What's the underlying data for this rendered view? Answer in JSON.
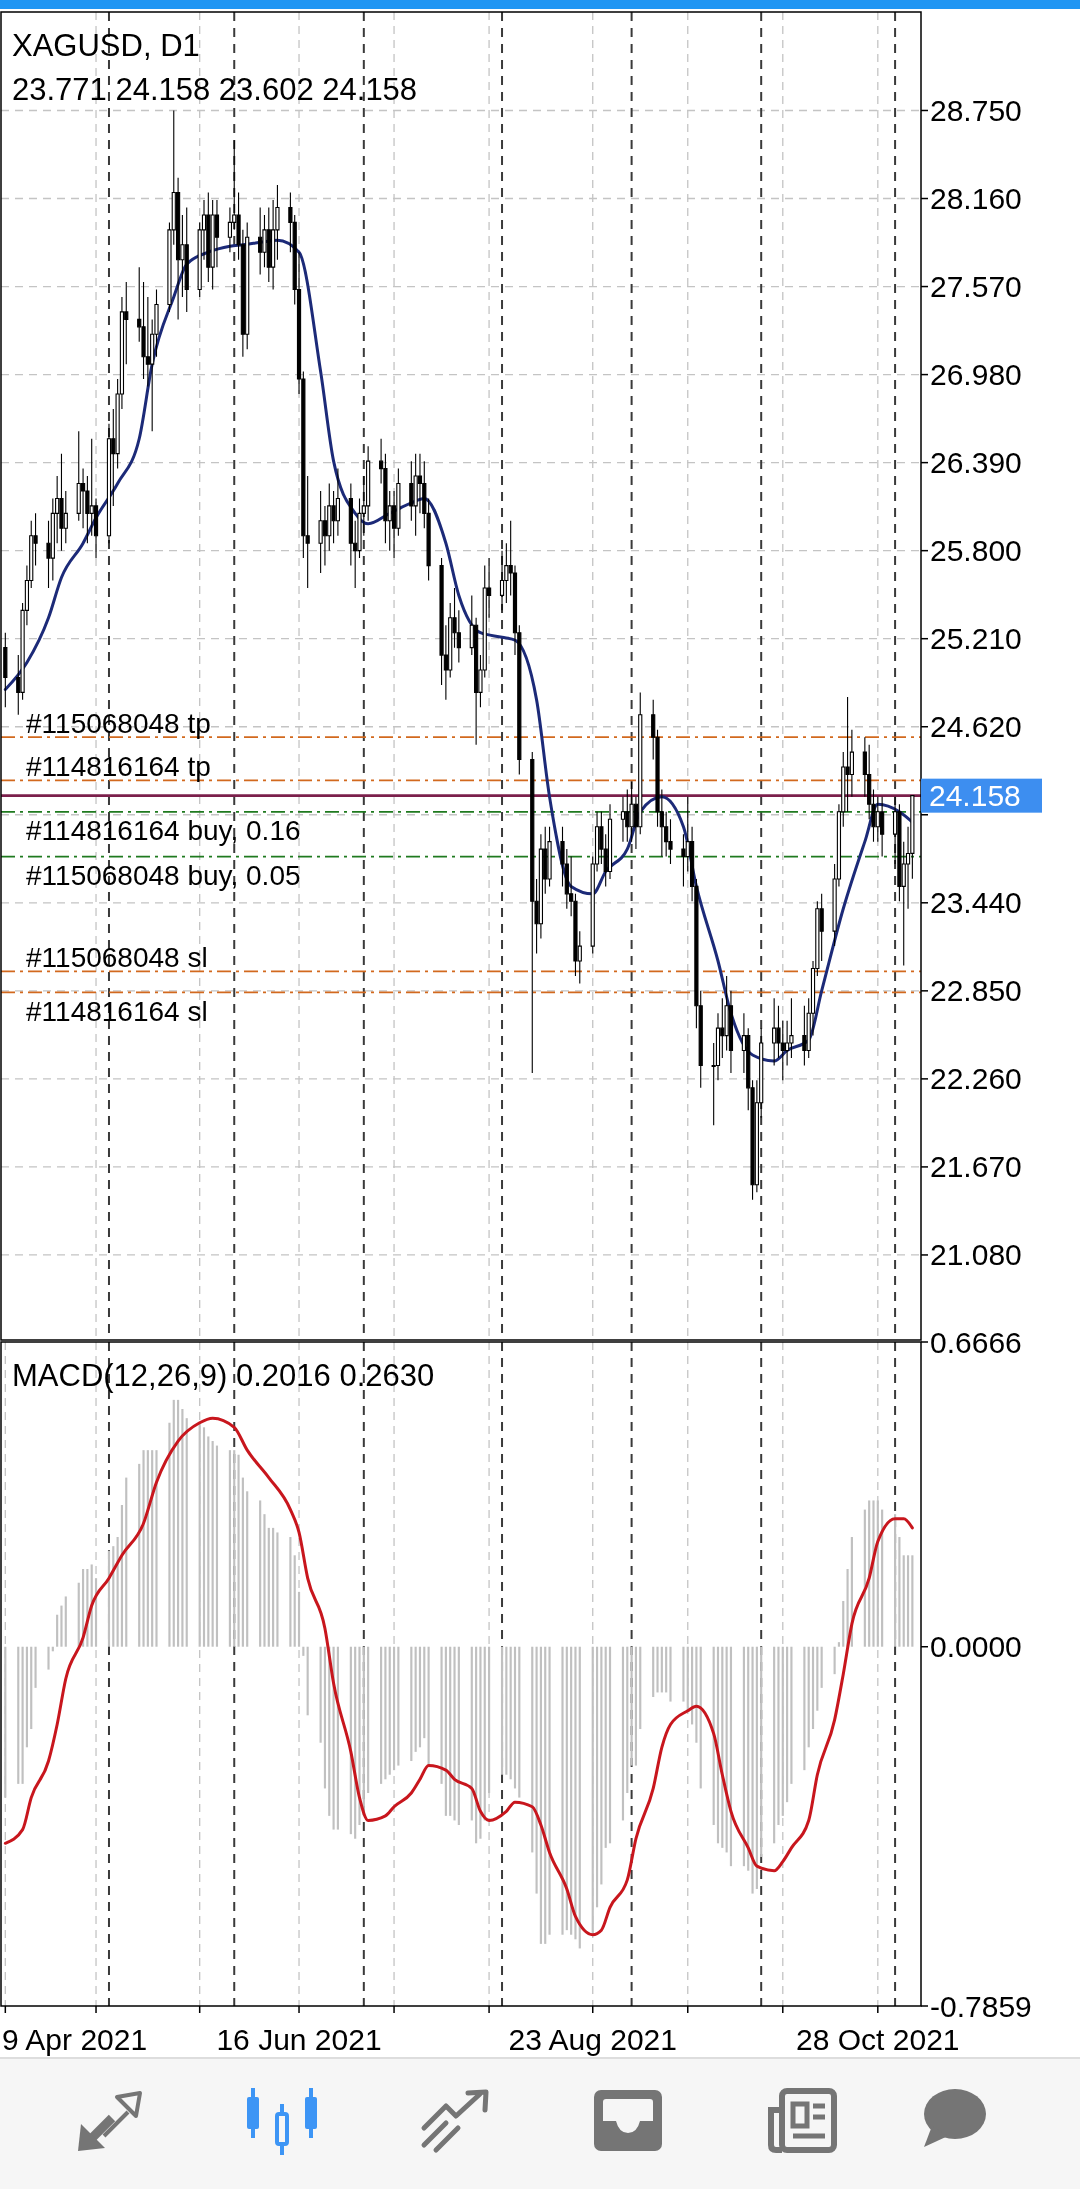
{
  "chart_data": [
    {
      "type": "candlestick",
      "title": "XAGUSD, D1",
      "subtitle": "23.771 24.158 23.602 24.158",
      "x": [
        "2021-04-09",
        "2021-04-12",
        "2021-04-13",
        "2021-04-14",
        "2021-04-15",
        "2021-04-16",
        "2021-04-19",
        "2021-04-20",
        "2021-04-21",
        "2021-04-22",
        "2021-04-23",
        "2021-04-26",
        "2021-04-27",
        "2021-04-28",
        "2021-04-29",
        "2021-04-30",
        "2021-05-03",
        "2021-05-04",
        "2021-05-05",
        "2021-05-06",
        "2021-05-07",
        "2021-05-10",
        "2021-05-11",
        "2021-05-12",
        "2021-05-13",
        "2021-05-14",
        "2021-05-17",
        "2021-05-18",
        "2021-05-19",
        "2021-05-20",
        "2021-05-21",
        "2021-05-24",
        "2021-05-25",
        "2021-05-26",
        "2021-05-27",
        "2021-05-28",
        "2021-05-31",
        "2021-06-01",
        "2021-06-02",
        "2021-06-03",
        "2021-06-04",
        "2021-06-07",
        "2021-06-08",
        "2021-06-09",
        "2021-06-10",
        "2021-06-11",
        "2021-06-14",
        "2021-06-15",
        "2021-06-16",
        "2021-06-17",
        "2021-06-18",
        "2021-06-21",
        "2021-06-22",
        "2021-06-23",
        "2021-06-24",
        "2021-06-25",
        "2021-06-28",
        "2021-06-29",
        "2021-06-30",
        "2021-07-01",
        "2021-07-02",
        "2021-07-05",
        "2021-07-06",
        "2021-07-07",
        "2021-07-08",
        "2021-07-09",
        "2021-07-12",
        "2021-07-13",
        "2021-07-14",
        "2021-07-15",
        "2021-07-16",
        "2021-07-19",
        "2021-07-20",
        "2021-07-21",
        "2021-07-22",
        "2021-07-23",
        "2021-07-26",
        "2021-07-27",
        "2021-07-28",
        "2021-07-29",
        "2021-07-30",
        "2021-08-02",
        "2021-08-03",
        "2021-08-04",
        "2021-08-05",
        "2021-08-06",
        "2021-08-09",
        "2021-08-10",
        "2021-08-11",
        "2021-08-12",
        "2021-08-13",
        "2021-08-16",
        "2021-08-17",
        "2021-08-18",
        "2021-08-19",
        "2021-08-20",
        "2021-08-23",
        "2021-08-24",
        "2021-08-25",
        "2021-08-26",
        "2021-08-27",
        "2021-08-30",
        "2021-08-31",
        "2021-09-01",
        "2021-09-02",
        "2021-09-03",
        "2021-09-06",
        "2021-09-07",
        "2021-09-08",
        "2021-09-09",
        "2021-09-10",
        "2021-09-13",
        "2021-09-14",
        "2021-09-15",
        "2021-09-16",
        "2021-09-17",
        "2021-09-20",
        "2021-09-21",
        "2021-09-22",
        "2021-09-23",
        "2021-09-24",
        "2021-09-27",
        "2021-09-28",
        "2021-09-29",
        "2021-09-30",
        "2021-10-01",
        "2021-10-04",
        "2021-10-05",
        "2021-10-06",
        "2021-10-07",
        "2021-10-08",
        "2021-10-11",
        "2021-10-12",
        "2021-10-13",
        "2021-10-14",
        "2021-10-15",
        "2021-10-18",
        "2021-10-19",
        "2021-10-20",
        "2021-10-21",
        "2021-10-22",
        "2021-10-25",
        "2021-10-26",
        "2021-10-27",
        "2021-10-28",
        "2021-10-29",
        "2021-11-01",
        "2021-11-02",
        "2021-11-03",
        "2021-11-04",
        "2021-11-05"
      ],
      "series": [
        {
          "color": "#000000",
          "ohlc": [
            [
              25.15,
              25.25,
              24.75,
              24.95
            ],
            [
              24.95,
              25.1,
              24.7,
              24.85
            ],
            [
              24.85,
              25.45,
              24.8,
              25.4
            ],
            [
              25.4,
              25.7,
              25.3,
              25.6
            ],
            [
              25.6,
              26.0,
              25.55,
              25.9
            ],
            [
              25.9,
              26.05,
              25.7,
              25.85
            ],
            [
              25.85,
              26.0,
              25.55,
              25.75
            ],
            [
              25.75,
              26.15,
              25.6,
              26.05
            ],
            [
              26.05,
              26.3,
              25.85,
              26.15
            ],
            [
              26.15,
              26.45,
              25.8,
              25.95
            ],
            [
              25.95,
              26.2,
              25.85,
              26.05
            ],
            [
              26.05,
              26.6,
              26.0,
              26.25
            ],
            [
              26.25,
              26.35,
              25.95,
              26.2
            ],
            [
              26.2,
              26.3,
              25.85,
              26.05
            ],
            [
              26.05,
              26.55,
              25.9,
              26.1
            ],
            [
              26.1,
              26.15,
              25.75,
              25.9
            ],
            [
              25.9,
              26.65,
              25.85,
              26.55
            ],
            [
              26.55,
              26.75,
              26.1,
              26.45
            ],
            [
              26.45,
              26.95,
              26.35,
              26.85
            ],
            [
              26.85,
              27.5,
              26.75,
              27.4
            ],
            [
              27.4,
              27.6,
              27.05,
              27.35
            ],
            [
              27.35,
              27.7,
              27.2,
              27.3
            ],
            [
              27.3,
              27.6,
              26.95,
              27.1
            ],
            [
              27.1,
              27.5,
              26.9,
              27.05
            ],
            [
              27.05,
              27.35,
              26.6,
              27.25
            ],
            [
              27.25,
              27.55,
              27.1,
              27.45
            ],
            [
              27.45,
              28.0,
              27.4,
              27.95
            ],
            [
              27.95,
              28.75,
              27.85,
              28.2
            ],
            [
              28.2,
              28.3,
              27.35,
              27.75
            ],
            [
              27.75,
              28.05,
              27.5,
              27.85
            ],
            [
              27.85,
              28.1,
              27.4,
              27.55
            ],
            [
              27.55,
              28.0,
              27.5,
              27.95
            ],
            [
              27.95,
              28.15,
              27.75,
              28.05
            ],
            [
              28.05,
              28.2,
              27.6,
              27.7
            ],
            [
              27.7,
              28.15,
              27.55,
              28.05
            ],
            [
              28.05,
              28.15,
              27.7,
              27.9
            ],
            [
              27.9,
              28.1,
              27.8,
              28.0
            ],
            [
              28.0,
              28.55,
              27.95,
              28.05
            ],
            [
              28.05,
              28.2,
              27.75,
              27.85
            ],
            [
              27.85,
              27.95,
              27.1,
              27.25
            ],
            [
              27.25,
              28.0,
              27.15,
              27.9
            ],
            [
              27.9,
              28.1,
              27.65,
              27.8
            ],
            [
              27.8,
              28.05,
              27.7,
              27.95
            ],
            [
              27.95,
              28.1,
              27.6,
              27.7
            ],
            [
              27.7,
              28.15,
              27.55,
              27.95
            ],
            [
              27.95,
              28.25,
              27.75,
              28.1
            ],
            [
              28.1,
              28.2,
              27.8,
              28.0
            ],
            [
              28.0,
              28.05,
              27.45,
              27.55
            ],
            [
              27.55,
              27.8,
              26.85,
              26.95
            ],
            [
              26.95,
              27.0,
              25.75,
              25.9
            ],
            [
              25.9,
              26.3,
              25.55,
              25.85
            ],
            [
              25.85,
              26.2,
              25.65,
              26.0
            ],
            [
              26.0,
              26.1,
              25.7,
              25.9
            ],
            [
              25.9,
              26.25,
              25.8,
              26.1
            ],
            [
              26.1,
              26.2,
              25.85,
              26.0
            ],
            [
              26.0,
              26.35,
              25.9,
              26.15
            ],
            [
              26.15,
              26.25,
              25.7,
              25.85
            ],
            [
              25.85,
              26.0,
              25.55,
              25.8
            ],
            [
              25.8,
              26.15,
              25.75,
              26.05
            ],
            [
              26.05,
              26.3,
              25.9,
              26.1
            ],
            [
              26.1,
              26.5,
              26.0,
              26.4
            ],
            [
              26.4,
              26.55,
              26.25,
              26.35
            ],
            [
              26.35,
              26.45,
              25.85,
              26.0
            ],
            [
              26.0,
              26.2,
              25.8,
              26.1
            ],
            [
              26.1,
              26.2,
              25.75,
              25.95
            ],
            [
              25.95,
              26.35,
              25.9,
              26.25
            ],
            [
              26.25,
              26.4,
              26.0,
              26.1
            ],
            [
              26.1,
              26.45,
              25.9,
              26.3
            ],
            [
              26.3,
              26.45,
              26.05,
              26.25
            ],
            [
              26.25,
              26.4,
              25.95,
              26.05
            ],
            [
              26.05,
              26.15,
              25.6,
              25.7
            ],
            [
              25.7,
              25.75,
              24.9,
              25.1
            ],
            [
              25.1,
              25.3,
              24.8,
              25.0
            ],
            [
              25.0,
              25.45,
              24.95,
              25.35
            ],
            [
              25.35,
              25.55,
              25.15,
              25.25
            ],
            [
              25.25,
              25.4,
              25.05,
              25.15
            ],
            [
              25.15,
              25.5,
              25.1,
              25.3
            ],
            [
              25.3,
              25.35,
              24.5,
              24.85
            ],
            [
              24.85,
              25.1,
              24.75,
              25.0
            ],
            [
              25.0,
              25.7,
              24.95,
              25.55
            ],
            [
              25.55,
              25.75,
              25.35,
              25.5
            ],
            [
              25.5,
              25.8,
              25.4,
              25.6
            ],
            [
              25.6,
              25.85,
              25.45,
              25.7
            ],
            [
              25.7,
              26.0,
              25.5,
              25.65
            ],
            [
              25.65,
              25.7,
              25.1,
              25.25
            ],
            [
              25.25,
              25.3,
              24.3,
              24.4
            ],
            [
              24.4,
              24.45,
              22.3,
              23.45
            ],
            [
              23.45,
              23.6,
              23.1,
              23.3
            ],
            [
              23.3,
              23.9,
              23.2,
              23.8
            ],
            [
              23.8,
              23.95,
              23.5,
              23.6
            ],
            [
              23.6,
              23.95,
              23.55,
              23.85
            ],
            [
              23.85,
              23.95,
              23.55,
              23.7
            ],
            [
              23.7,
              23.8,
              23.4,
              23.5
            ],
            [
              23.5,
              23.75,
              23.35,
              23.45
            ],
            [
              23.45,
              23.5,
              22.95,
              23.05
            ],
            [
              23.05,
              23.25,
              22.9,
              23.15
            ],
            [
              23.15,
              23.75,
              23.1,
              23.7
            ],
            [
              23.7,
              24.05,
              23.65,
              23.95
            ],
            [
              23.95,
              24.05,
              23.7,
              23.8
            ],
            [
              23.8,
              23.9,
              23.55,
              23.65
            ],
            [
              23.65,
              24.1,
              23.6,
              24.0
            ],
            [
              24.0,
              24.15,
              23.85,
              24.05
            ],
            [
              24.05,
              24.2,
              23.85,
              23.95
            ],
            [
              23.95,
              24.25,
              23.85,
              24.1
            ],
            [
              24.1,
              24.15,
              23.8,
              23.95
            ],
            [
              23.95,
              24.85,
              23.9,
              24.7
            ],
            [
              24.7,
              24.8,
              24.4,
              24.55
            ],
            [
              24.55,
              24.6,
              23.95,
              24.05
            ],
            [
              24.05,
              24.2,
              23.75,
              23.95
            ],
            [
              23.95,
              24.05,
              23.75,
              23.85
            ],
            [
              23.85,
              24.0,
              23.7,
              23.8
            ],
            [
              23.8,
              23.9,
              23.55,
              23.75
            ],
            [
              23.75,
              24.15,
              23.65,
              23.85
            ],
            [
              23.85,
              23.95,
              23.45,
              23.55
            ],
            [
              23.55,
              23.6,
              22.6,
              22.75
            ],
            [
              22.75,
              22.85,
              22.2,
              22.35
            ],
            [
              22.35,
              22.5,
              21.95,
              22.35
            ],
            [
              22.35,
              22.7,
              22.25,
              22.6
            ],
            [
              22.6,
              22.8,
              22.4,
              22.55
            ],
            [
              22.55,
              22.95,
              22.45,
              22.75
            ],
            [
              22.75,
              22.85,
              22.3,
              22.45
            ],
            [
              22.45,
              22.7,
              22.3,
              22.55
            ],
            [
              22.55,
              22.6,
              22.05,
              22.2
            ],
            [
              22.2,
              22.25,
              21.45,
              21.55
            ],
            [
              21.55,
              22.25,
              21.5,
              22.1
            ],
            [
              22.1,
              22.6,
              22.0,
              22.5
            ],
            [
              22.5,
              22.8,
              22.35,
              22.6
            ],
            [
              22.6,
              22.75,
              22.4,
              22.5
            ],
            [
              22.5,
              22.65,
              22.25,
              22.45
            ],
            [
              22.45,
              22.65,
              22.35,
              22.5
            ],
            [
              22.5,
              22.8,
              22.4,
              22.55
            ],
            [
              22.55,
              22.75,
              22.35,
              22.45
            ],
            [
              22.45,
              22.8,
              22.4,
              22.7
            ],
            [
              22.7,
              23.05,
              22.55,
              23.0
            ],
            [
              23.0,
              23.45,
              22.95,
              23.4
            ],
            [
              23.4,
              23.5,
              23.05,
              23.25
            ],
            [
              23.25,
              23.7,
              23.15,
              23.6
            ],
            [
              23.6,
              24.1,
              23.55,
              24.05
            ],
            [
              24.05,
              24.45,
              23.95,
              24.35
            ],
            [
              24.35,
              24.82,
              24.05,
              24.3
            ],
            [
              24.3,
              24.6,
              24.15,
              24.45
            ],
            [
              24.45,
              24.55,
              24.15,
              24.3
            ],
            [
              24.3,
              24.5,
              24.0,
              24.1
            ],
            [
              24.1,
              24.2,
              23.85,
              23.95
            ],
            [
              23.95,
              24.15,
              23.85,
              24.05
            ],
            [
              24.05,
              24.15,
              23.75,
              23.9
            ],
            [
              23.9,
              24.15,
              23.7,
              24.05
            ],
            [
              24.05,
              24.1,
              23.45,
              23.55
            ],
            [
              23.55,
              23.85,
              23.02,
              23.7
            ],
            [
              23.7,
              23.95,
              23.4,
              23.77
            ],
            [
              23.771,
              24.158,
              23.602,
              24.158
            ]
          ]
        },
        {
          "type": "line",
          "color": "#1c2a78",
          "x": [
            "2021-04-09",
            "2021-04-14",
            "2021-04-19",
            "2021-04-22",
            "2021-04-27",
            "2021-04-30",
            "2021-05-05",
            "2021-05-10",
            "2021-05-13",
            "2021-05-18",
            "2021-05-21",
            "2021-05-26",
            "2021-05-31",
            "2021-06-03",
            "2021-06-08",
            "2021-06-11",
            "2021-06-16",
            "2021-06-21",
            "2021-06-24",
            "2021-06-29",
            "2021-07-02",
            "2021-07-07",
            "2021-07-12",
            "2021-07-15",
            "2021-07-20",
            "2021-07-23",
            "2021-07-28",
            "2021-08-02",
            "2021-08-05",
            "2021-08-10",
            "2021-08-13",
            "2021-08-18",
            "2021-08-23",
            "2021-08-26",
            "2021-08-31",
            "2021-09-03",
            "2021-09-08",
            "2021-09-13",
            "2021-09-16",
            "2021-09-21",
            "2021-09-24",
            "2021-09-29",
            "2021-10-04",
            "2021-10-07",
            "2021-10-12",
            "2021-10-15",
            "2021-10-20",
            "2021-10-25",
            "2021-10-28",
            "2021-11-02",
            "2021-11-05"
          ],
          "values": [
            24.87,
            25.05,
            25.35,
            25.62,
            25.85,
            26.02,
            26.25,
            26.55,
            27.05,
            27.5,
            27.72,
            27.8,
            27.84,
            27.85,
            27.87,
            27.88,
            27.8,
            27.0,
            26.4,
            26.05,
            25.98,
            26.05,
            26.12,
            26.15,
            25.85,
            25.5,
            25.25,
            25.22,
            25.2,
            24.8,
            24.15,
            23.55,
            23.5,
            23.65,
            23.8,
            24.05,
            24.15,
            23.95,
            23.55,
            23.05,
            22.7,
            22.42,
            22.38,
            22.45,
            22.52,
            22.85,
            23.4,
            23.85,
            24.1,
            24.05,
            23.98
          ]
        }
      ],
      "xlim": [
        "2021-04-08",
        "2021-11-07"
      ],
      "ylim": [
        20.51,
        29.41
      ],
      "xticks": [
        {
          "value": "2021-04-30",
          "label": null
        },
        {
          "value": "2021-05-24",
          "label": null
        },
        {
          "value": "2021-06-16",
          "label": null
        },
        {
          "value": "2021-07-08",
          "label": null
        },
        {
          "value": "2021-07-30",
          "label": null
        },
        {
          "value": "2021-08-23",
          "label": null
        },
        {
          "value": "2021-09-14",
          "label": null
        },
        {
          "value": "2021-10-06",
          "label": null
        },
        {
          "value": "2021-10-28",
          "label": null
        }
      ],
      "yticks": [
        {
          "value": 28.75,
          "label": "28.750"
        },
        {
          "value": 28.16,
          "label": "28.160"
        },
        {
          "value": 27.57,
          "label": "27.570"
        },
        {
          "value": 26.98,
          "label": "26.980"
        },
        {
          "value": 26.39,
          "label": "26.390"
        },
        {
          "value": 25.8,
          "label": "25.800"
        },
        {
          "value": 25.21,
          "label": "25.210"
        },
        {
          "value": 24.62,
          "label": "24.620"
        },
        {
          "value": 24.03,
          "label": null
        },
        {
          "value": 23.44,
          "label": "23.440"
        },
        {
          "value": 22.85,
          "label": "22.850"
        },
        {
          "value": 22.26,
          "label": "22.260"
        },
        {
          "value": 21.67,
          "label": "21.670"
        },
        {
          "value": 21.08,
          "label": "21.080"
        }
      ],
      "grid": true,
      "tick_labels": "y",
      "ref_lines": [
        {
          "axis": "x",
          "value": "2021-05-03",
          "color": "#3a3a3a",
          "line_style": "dashed"
        },
        {
          "axis": "x",
          "value": "2021-06-01",
          "color": "#3a3a3a",
          "line_style": "dashed"
        },
        {
          "axis": "x",
          "value": "2021-07-01",
          "color": "#3a3a3a",
          "line_style": "dashed"
        },
        {
          "axis": "x",
          "value": "2021-08-02",
          "color": "#3a3a3a",
          "line_style": "dashed"
        },
        {
          "axis": "x",
          "value": "2021-09-01",
          "color": "#3a3a3a",
          "line_style": "dashed"
        },
        {
          "axis": "x",
          "value": "2021-10-01",
          "color": "#3a3a3a",
          "line_style": "dashed"
        },
        {
          "axis": "x",
          "value": "2021-11-01",
          "color": "#3a3a3a",
          "line_style": "dashed"
        },
        {
          "axis": "y",
          "value": 24.55,
          "label": "#115068048 tp",
          "color": "#d2691e",
          "line_style": "dashdot"
        },
        {
          "axis": "y",
          "value": 24.26,
          "label": "#114816164 tp",
          "color": "#d2691e",
          "line_style": "dashdot"
        },
        {
          "axis": "y",
          "value": 24.05,
          "label": "#114816164 buy, 0.16",
          "color": "#1f7a1f",
          "line_style": "dashdot"
        },
        {
          "axis": "y",
          "value": 23.75,
          "label": "#115068048 buy, 0.05",
          "color": "#1f7a1f",
          "line_style": "dashdot"
        },
        {
          "axis": "y",
          "value": 22.98,
          "label": "#115068048 sl",
          "color": "#d2691e",
          "line_style": "dashdot"
        },
        {
          "axis": "y",
          "value": 22.84,
          "label": "#114816164 sl",
          "color": "#d2691e",
          "line_style": "dashdot"
        },
        {
          "axis": "y",
          "value": 24.158,
          "label": "24.158",
          "color": "#7b1f4b",
          "line_style": "solid"
        }
      ]
    },
    {
      "type": "bar",
      "title": "MACD(12,26,9) 0.2016 0.2630",
      "x": [
        "2021-04-09",
        "2021-04-12",
        "2021-04-13",
        "2021-04-14",
        "2021-04-15",
        "2021-04-16",
        "2021-04-19",
        "2021-04-20",
        "2021-04-21",
        "2021-04-22",
        "2021-04-23",
        "2021-04-26",
        "2021-04-27",
        "2021-04-28",
        "2021-04-29",
        "2021-04-30",
        "2021-05-03",
        "2021-05-04",
        "2021-05-05",
        "2021-05-06",
        "2021-05-07",
        "2021-05-10",
        "2021-05-11",
        "2021-05-12",
        "2021-05-13",
        "2021-05-14",
        "2021-05-17",
        "2021-05-18",
        "2021-05-19",
        "2021-05-20",
        "2021-05-21",
        "2021-05-24",
        "2021-05-25",
        "2021-05-26",
        "2021-05-27",
        "2021-05-28",
        "2021-05-31",
        "2021-06-01",
        "2021-06-02",
        "2021-06-03",
        "2021-06-04",
        "2021-06-07",
        "2021-06-08",
        "2021-06-09",
        "2021-06-10",
        "2021-06-11",
        "2021-06-14",
        "2021-06-15",
        "2021-06-16",
        "2021-06-17",
        "2021-06-18",
        "2021-06-21",
        "2021-06-22",
        "2021-06-23",
        "2021-06-24",
        "2021-06-25",
        "2021-06-28",
        "2021-06-29",
        "2021-06-30",
        "2021-07-01",
        "2021-07-02",
        "2021-07-05",
        "2021-07-06",
        "2021-07-07",
        "2021-07-08",
        "2021-07-09",
        "2021-07-12",
        "2021-07-13",
        "2021-07-14",
        "2021-07-15",
        "2021-07-16",
        "2021-07-19",
        "2021-07-20",
        "2021-07-21",
        "2021-07-22",
        "2021-07-23",
        "2021-07-26",
        "2021-07-27",
        "2021-07-28",
        "2021-07-29",
        "2021-07-30",
        "2021-08-02",
        "2021-08-03",
        "2021-08-04",
        "2021-08-05",
        "2021-08-06",
        "2021-08-09",
        "2021-08-10",
        "2021-08-11",
        "2021-08-12",
        "2021-08-13",
        "2021-08-16",
        "2021-08-17",
        "2021-08-18",
        "2021-08-19",
        "2021-08-20",
        "2021-08-23",
        "2021-08-24",
        "2021-08-25",
        "2021-08-26",
        "2021-08-27",
        "2021-08-30",
        "2021-08-31",
        "2021-09-01",
        "2021-09-02",
        "2021-09-03",
        "2021-09-06",
        "2021-09-07",
        "2021-09-08",
        "2021-09-09",
        "2021-09-10",
        "2021-09-13",
        "2021-09-14",
        "2021-09-15",
        "2021-09-16",
        "2021-09-17",
        "2021-09-20",
        "2021-09-21",
        "2021-09-22",
        "2021-09-23",
        "2021-09-24",
        "2021-09-27",
        "2021-09-28",
        "2021-09-29",
        "2021-09-30",
        "2021-10-01",
        "2021-10-04",
        "2021-10-05",
        "2021-10-06",
        "2021-10-07",
        "2021-10-08",
        "2021-10-11",
        "2021-10-12",
        "2021-10-13",
        "2021-10-14",
        "2021-10-15",
        "2021-10-18",
        "2021-10-19",
        "2021-10-20",
        "2021-10-21",
        "2021-10-22",
        "2021-10-25",
        "2021-10-26",
        "2021-10-27",
        "2021-10-28",
        "2021-10-29",
        "2021-11-01",
        "2021-11-02",
        "2021-11-03",
        "2021-11-04",
        "2021-11-05"
      ],
      "series": [
        {
          "color": "#c0c0c0",
          "values": [
            -0.33,
            -0.3,
            -0.3,
            -0.22,
            -0.18,
            -0.09,
            -0.05,
            -0.01,
            0.07,
            0.09,
            0.11,
            0.14,
            0.17,
            0.17,
            0.18,
            0.15,
            0.21,
            0.22,
            0.24,
            0.31,
            0.37,
            0.4,
            0.43,
            0.43,
            0.43,
            0.43,
            0.49,
            0.54,
            0.54,
            0.52,
            0.5,
            0.49,
            0.48,
            0.46,
            0.45,
            0.44,
            0.43,
            0.43,
            0.42,
            0.37,
            0.34,
            0.32,
            0.29,
            0.26,
            0.26,
            0.25,
            0.24,
            0.2,
            0.12,
            -0.02,
            -0.15,
            -0.21,
            -0.31,
            -0.37,
            -0.4,
            -0.4,
            -0.41,
            -0.42,
            -0.39,
            -0.37,
            -0.32,
            -0.3,
            -0.29,
            -0.28,
            -0.27,
            -0.26,
            -0.25,
            -0.23,
            -0.22,
            -0.2,
            -0.26,
            -0.3,
            -0.37,
            -0.37,
            -0.38,
            -0.39,
            -0.38,
            -0.43,
            -0.42,
            -0.38,
            -0.32,
            -0.28,
            -0.28,
            -0.29,
            -0.31,
            -0.33,
            -0.45,
            -0.54,
            -0.65,
            -0.65,
            -0.63,
            -0.63,
            -0.62,
            -0.63,
            -0.64,
            -0.66,
            -0.63,
            -0.57,
            -0.52,
            -0.44,
            -0.43,
            -0.38,
            -0.32,
            -0.26,
            -0.26,
            -0.18,
            -0.11,
            -0.1,
            -0.1,
            -0.1,
            -0.12,
            -0.12,
            -0.14,
            -0.17,
            -0.21,
            -0.31,
            -0.39,
            -0.43,
            -0.44,
            -0.45,
            -0.48,
            -0.48,
            -0.49,
            -0.54,
            -0.53,
            -0.46,
            -0.43,
            -0.39,
            -0.37,
            -0.34,
            -0.3,
            -0.27,
            -0.22,
            -0.18,
            -0.14,
            -0.09,
            -0.06,
            0.01,
            0.1,
            0.17,
            0.24,
            0.3,
            0.32,
            0.32,
            0.32,
            0.3,
            0.29,
            0.24,
            0.2,
            0.2,
            0.2
          ]
        },
        {
          "type": "line",
          "color": "#c8161d",
          "x": [
            "2021-04-09",
            "2021-04-13",
            "2021-04-15",
            "2021-04-19",
            "2021-04-21",
            "2021-04-23",
            "2021-04-27",
            "2021-04-29",
            "2021-05-03",
            "2021-05-06",
            "2021-05-11",
            "2021-05-14",
            "2021-05-19",
            "2021-05-24",
            "2021-05-27",
            "2021-06-01",
            "2021-06-04",
            "2021-06-09",
            "2021-06-14",
            "2021-06-16",
            "2021-06-18",
            "2021-06-22",
            "2021-06-24",
            "2021-06-28",
            "2021-06-30",
            "2021-07-02",
            "2021-07-06",
            "2021-07-08",
            "2021-07-12",
            "2021-07-14",
            "2021-07-16",
            "2021-07-20",
            "2021-07-22",
            "2021-07-26",
            "2021-07-28",
            "2021-07-30",
            "2021-08-03",
            "2021-08-05",
            "2021-08-09",
            "2021-08-11",
            "2021-08-13",
            "2021-08-17",
            "2021-08-19",
            "2021-08-23",
            "2021-08-25",
            "2021-08-27",
            "2021-08-31",
            "2021-09-02",
            "2021-09-06",
            "2021-09-08",
            "2021-09-10",
            "2021-09-14",
            "2021-09-16",
            "2021-09-20",
            "2021-09-22",
            "2021-09-24",
            "2021-09-28",
            "2021-09-30",
            "2021-10-04",
            "2021-10-06",
            "2021-10-08",
            "2021-10-12",
            "2021-10-14",
            "2021-10-18",
            "2021-10-20",
            "2021-10-22",
            "2021-10-26",
            "2021-10-28",
            "2021-11-01",
            "2021-11-03",
            "2021-11-05"
          ],
          "values": [
            -0.43,
            -0.4,
            -0.33,
            -0.25,
            -0.17,
            -0.07,
            0.02,
            0.09,
            0.15,
            0.2,
            0.27,
            0.36,
            0.45,
            0.49,
            0.5,
            0.48,
            0.43,
            0.37,
            0.3,
            0.25,
            0.15,
            0.04,
            -0.08,
            -0.23,
            -0.33,
            -0.38,
            -0.37,
            -0.35,
            -0.32,
            -0.29,
            -0.26,
            -0.27,
            -0.29,
            -0.31,
            -0.36,
            -0.38,
            -0.36,
            -0.34,
            -0.35,
            -0.39,
            -0.45,
            -0.53,
            -0.59,
            -0.63,
            -0.62,
            -0.57,
            -0.51,
            -0.42,
            -0.31,
            -0.22,
            -0.17,
            -0.14,
            -0.13,
            -0.19,
            -0.28,
            -0.36,
            -0.44,
            -0.48,
            -0.49,
            -0.47,
            -0.44,
            -0.38,
            -0.28,
            -0.16,
            -0.06,
            0.05,
            0.15,
            0.23,
            0.28,
            0.28,
            0.26
          ]
        }
      ],
      "xlim": [
        "2021-04-08",
        "2021-11-07"
      ],
      "ylim": [
        -0.7859,
        0.6666
      ],
      "xticks": [
        {
          "value": "2021-04-09",
          "label": "9 Apr 2021"
        },
        {
          "value": "2021-04-30",
          "label": null
        },
        {
          "value": "2021-05-24",
          "label": null
        },
        {
          "value": "2021-06-16",
          "label": "16 Jun 2021"
        },
        {
          "value": "2021-07-08",
          "label": null
        },
        {
          "value": "2021-07-30",
          "label": null
        },
        {
          "value": "2021-08-23",
          "label": "23 Aug 2021"
        },
        {
          "value": "2021-09-14",
          "label": null
        },
        {
          "value": "2021-10-06",
          "label": null
        },
        {
          "value": "2021-10-28",
          "label": "28 Oct 2021"
        }
      ],
      "yticks": [
        0.6666,
        {
          "value": 0,
          "label": "0.0000"
        },
        -0.7859
      ],
      "grid": "x",
      "ref_lines": [
        {
          "axis": "x",
          "value": "2021-05-03",
          "color": "#3a3a3a",
          "line_style": "dashed"
        },
        {
          "axis": "x",
          "value": "2021-06-01",
          "color": "#3a3a3a",
          "line_style": "dashed"
        },
        {
          "axis": "x",
          "value": "2021-07-01",
          "color": "#3a3a3a",
          "line_style": "dashed"
        },
        {
          "axis": "x",
          "value": "2021-08-02",
          "color": "#3a3a3a",
          "line_style": "dashed"
        },
        {
          "axis": "x",
          "value": "2021-09-01",
          "color": "#3a3a3a",
          "line_style": "dashed"
        },
        {
          "axis": "x",
          "value": "2021-10-01",
          "color": "#3a3a3a",
          "line_style": "dashed"
        },
        {
          "axis": "x",
          "value": "2021-11-01",
          "color": "#3a3a3a",
          "line_style": "dashed"
        }
      ]
    }
  ]
}
